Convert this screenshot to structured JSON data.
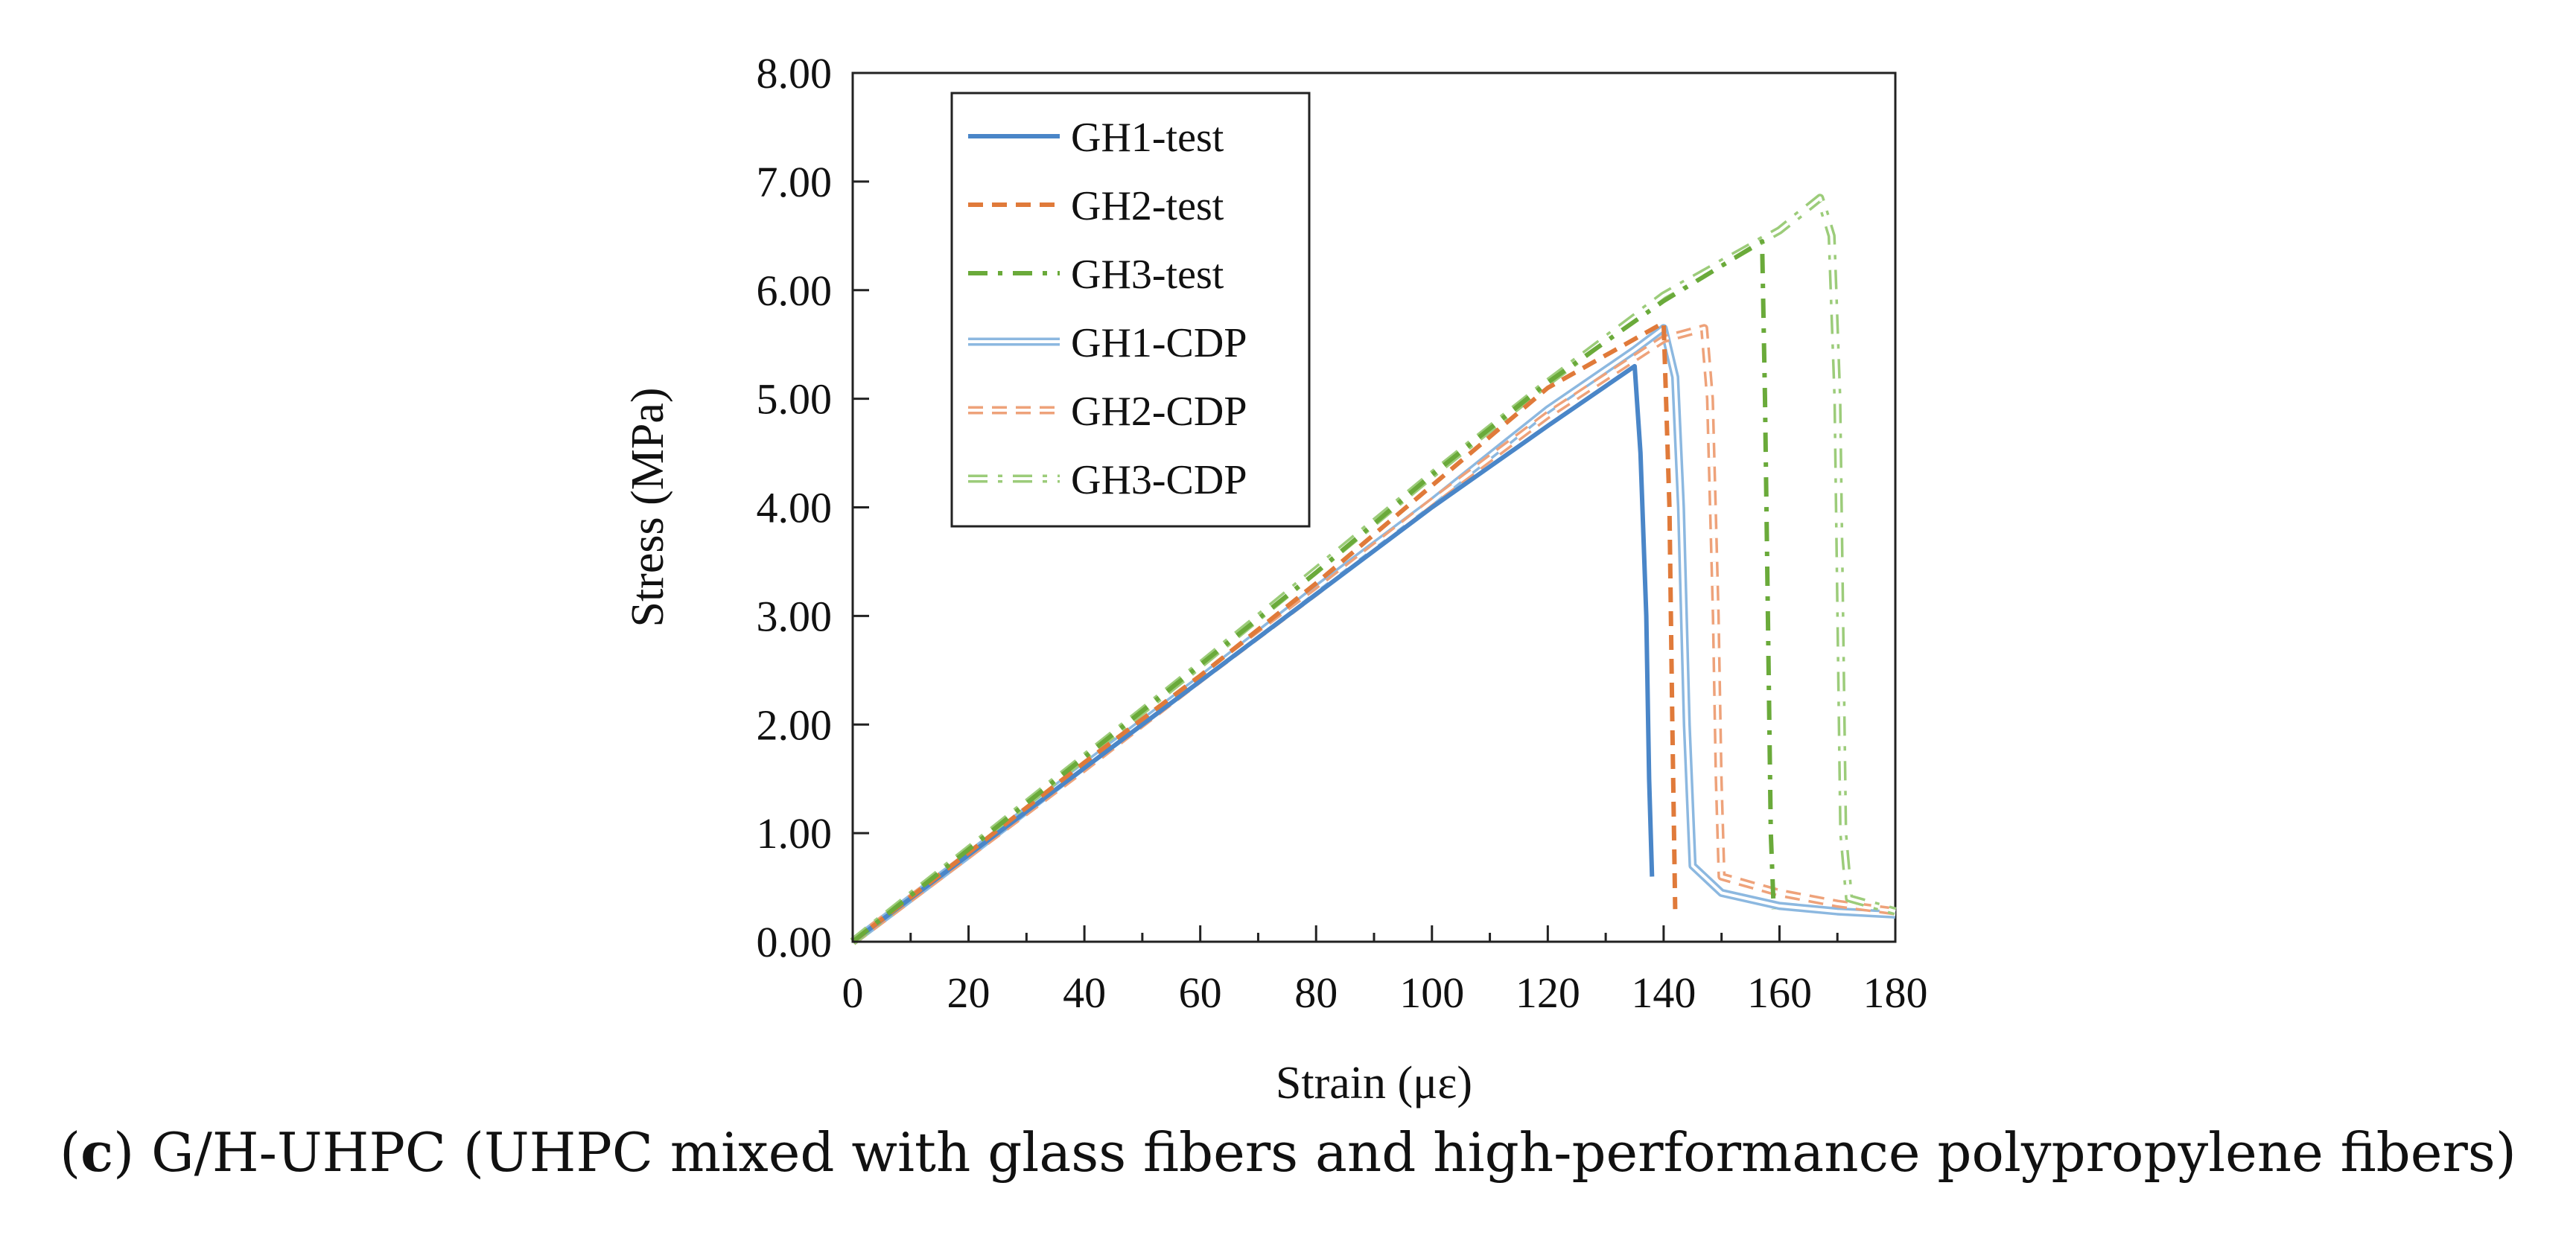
{
  "chart_data": {
    "type": "line",
    "xlabel": "Strain (με)",
    "ylabel": "Stress (MPa)",
    "xlim": [
      0,
      180
    ],
    "ylim": [
      0,
      8
    ],
    "xticks": [
      "0",
      "20",
      "40",
      "60",
      "80",
      "100",
      "120",
      "140",
      "160",
      "180"
    ],
    "yticks": [
      "0.00",
      "1.00",
      "2.00",
      "3.00",
      "4.00",
      "5.00",
      "6.00",
      "7.00",
      "8.00"
    ],
    "grid": false,
    "legend_position": "top-left",
    "series": [
      {
        "name": "GH1-test",
        "color": "#4a86c8",
        "style": "solid",
        "points": [
          [
            0,
            0
          ],
          [
            20,
            0.8
          ],
          [
            40,
            1.6
          ],
          [
            60,
            2.4
          ],
          [
            80,
            3.2
          ],
          [
            100,
            4.0
          ],
          [
            120,
            4.75
          ],
          [
            135,
            5.3
          ],
          [
            136,
            4.5
          ],
          [
            137,
            3.0
          ],
          [
            137.5,
            1.5
          ],
          [
            138,
            0.6
          ]
        ]
      },
      {
        "name": "GH2-test",
        "color": "#e07a3a",
        "style": "dashed",
        "points": [
          [
            0,
            0
          ],
          [
            20,
            0.82
          ],
          [
            40,
            1.65
          ],
          [
            60,
            2.45
          ],
          [
            80,
            3.3
          ],
          [
            100,
            4.2
          ],
          [
            120,
            5.1
          ],
          [
            135,
            5.55
          ],
          [
            140,
            5.7
          ],
          [
            141,
            4.0
          ],
          [
            141.5,
            2.0
          ],
          [
            142,
            0.3
          ]
        ]
      },
      {
        "name": "GH3-test",
        "color": "#6aaa3a",
        "style": "dashdot",
        "points": [
          [
            0,
            0
          ],
          [
            20,
            0.85
          ],
          [
            40,
            1.7
          ],
          [
            60,
            2.55
          ],
          [
            80,
            3.4
          ],
          [
            100,
            4.3
          ],
          [
            120,
            5.15
          ],
          [
            140,
            5.9
          ],
          [
            157,
            6.45
          ],
          [
            157.5,
            5.0
          ],
          [
            158,
            3.0
          ],
          [
            158.5,
            1.0
          ],
          [
            159,
            0.3
          ]
        ]
      },
      {
        "name": "GH1-CDP",
        "color": "#8cb8e0",
        "style": "solid-double",
        "points": [
          [
            0,
            0
          ],
          [
            20,
            0.8
          ],
          [
            40,
            1.62
          ],
          [
            60,
            2.42
          ],
          [
            80,
            3.25
          ],
          [
            100,
            4.05
          ],
          [
            120,
            4.9
          ],
          [
            135,
            5.45
          ],
          [
            140,
            5.65
          ],
          [
            142,
            5.2
          ],
          [
            143,
            4.0
          ],
          [
            144,
            2.0
          ],
          [
            145,
            0.7
          ],
          [
            150,
            0.45
          ],
          [
            160,
            0.33
          ],
          [
            170,
            0.28
          ],
          [
            180,
            0.25
          ]
        ]
      },
      {
        "name": "GH2-CDP",
        "color": "#eea27a",
        "style": "dashed-double",
        "points": [
          [
            0,
            0
          ],
          [
            20,
            0.8
          ],
          [
            40,
            1.6
          ],
          [
            60,
            2.42
          ],
          [
            80,
            3.22
          ],
          [
            100,
            4.05
          ],
          [
            120,
            4.85
          ],
          [
            140,
            5.55
          ],
          [
            147,
            5.65
          ],
          [
            148,
            5.0
          ],
          [
            149,
            3.0
          ],
          [
            149.5,
            1.5
          ],
          [
            150,
            0.6
          ],
          [
            160,
            0.45
          ],
          [
            170,
            0.35
          ],
          [
            180,
            0.28
          ]
        ]
      },
      {
        "name": "GH3-CDP",
        "color": "#9ccc7a",
        "style": "dashdot-double",
        "points": [
          [
            0,
            0
          ],
          [
            20,
            0.85
          ],
          [
            40,
            1.7
          ],
          [
            60,
            2.55
          ],
          [
            80,
            3.42
          ],
          [
            100,
            4.3
          ],
          [
            120,
            5.15
          ],
          [
            140,
            5.95
          ],
          [
            160,
            6.55
          ],
          [
            167,
            6.85
          ],
          [
            169,
            6.5
          ],
          [
            170,
            5.0
          ],
          [
            170.5,
            3.0
          ],
          [
            171,
            1.0
          ],
          [
            172,
            0.4
          ],
          [
            180,
            0.28
          ]
        ]
      }
    ]
  },
  "caption": {
    "label": "c",
    "text": "G/H-UHPC (UHPC mixed with glass fibers and high-performance polypropylene fibers)"
  }
}
